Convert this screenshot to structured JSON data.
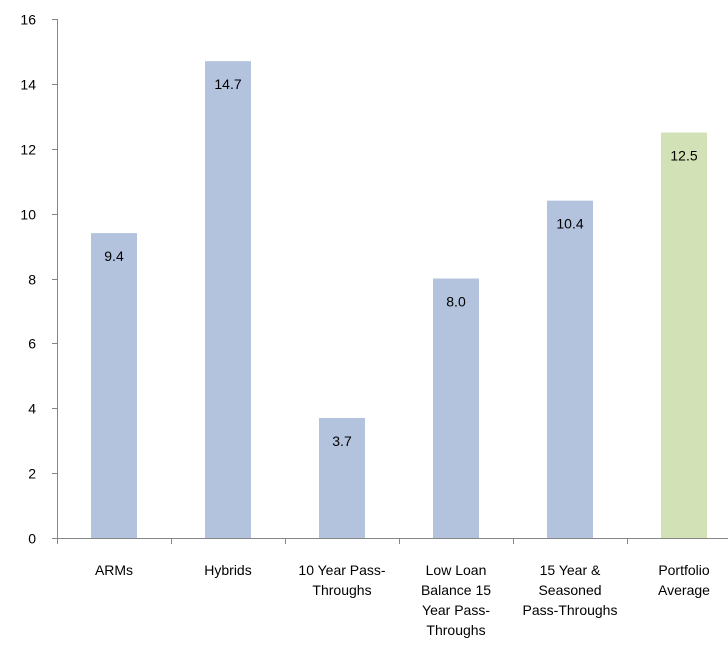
{
  "chart_data": {
    "type": "bar",
    "categories": [
      [
        "ARMs"
      ],
      [
        "Hybrids"
      ],
      [
        "10 Year Pass-",
        "Throughs"
      ],
      [
        "Low Loan",
        "Balance 15",
        "Year Pass-",
        "Throughs"
      ],
      [
        "15 Year &",
        "Seasoned",
        "Pass-Throughs"
      ],
      [
        "Portfolio",
        "Average"
      ]
    ],
    "values": [
      9.4,
      14.7,
      3.7,
      8.0,
      10.4,
      12.5
    ],
    "value_labels": [
      "9.4",
      "14.7",
      "3.7",
      "8.0",
      "10.4",
      "12.5"
    ],
    "bar_colors": [
      "#b3c2dd",
      "#b3c2dd",
      "#b3c2dd",
      "#b3c2dd",
      "#b3c2dd",
      "#d3e1b6"
    ],
    "ylim": [
      0,
      16
    ],
    "yticks": [
      "0",
      "2",
      "4",
      "6",
      "8",
      "10",
      "12",
      "14",
      "16"
    ],
    "title": "",
    "xlabel": "",
    "ylabel": "",
    "grid": false,
    "legend": "none",
    "axis_color": "#868686"
  }
}
